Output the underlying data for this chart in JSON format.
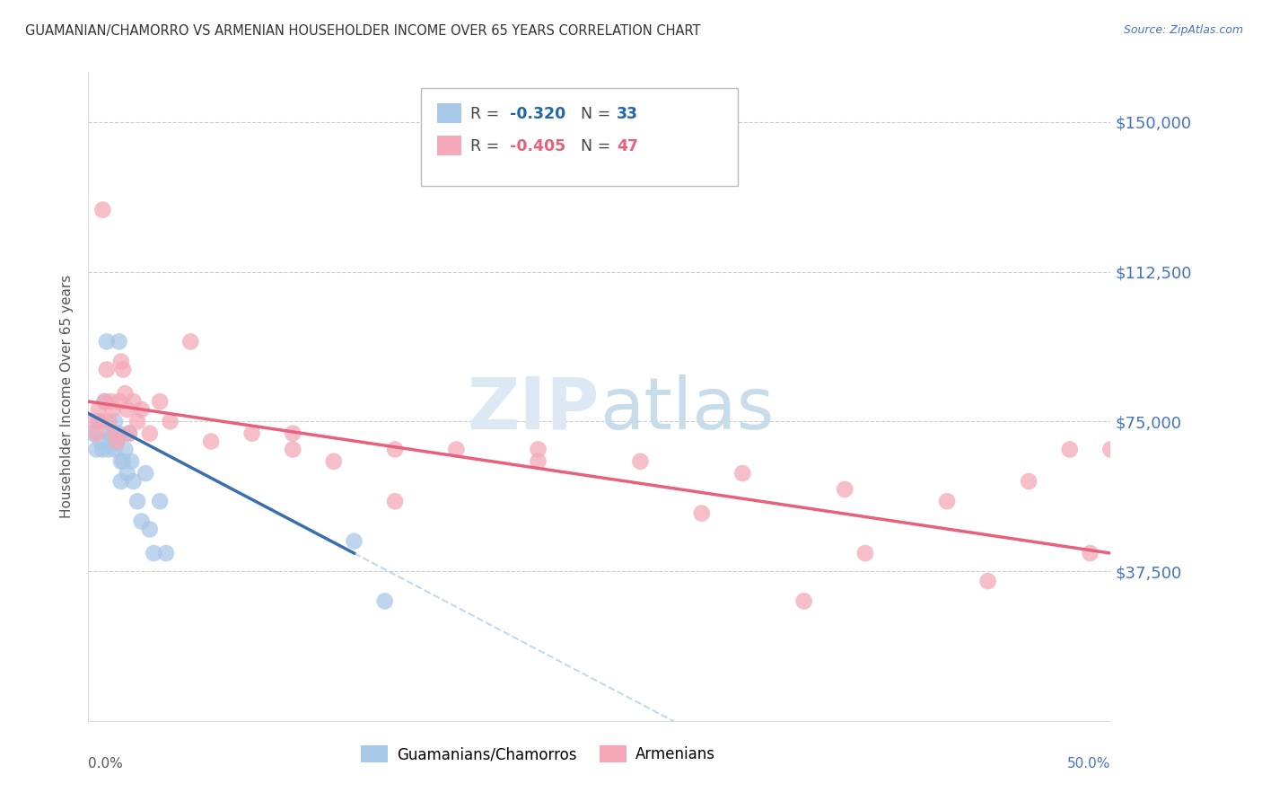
{
  "title": "GUAMANIAN/CHAMORRO VS ARMENIAN HOUSEHOLDER INCOME OVER 65 YEARS CORRELATION CHART",
  "source": "Source: ZipAtlas.com",
  "ylabel": "Householder Income Over 65 years",
  "ytick_labels": [
    "$37,500",
    "$75,000",
    "$112,500",
    "$150,000"
  ],
  "ytick_values": [
    37500,
    75000,
    112500,
    150000
  ],
  "ylim": [
    0,
    162500
  ],
  "xlim": [
    0.0,
    0.5
  ],
  "blue_color": "#a8c8e8",
  "pink_color": "#f4a8b8",
  "blue_line_color": "#3a6fad",
  "pink_line_color": "#e8607a",
  "blue_r": "-0.320",
  "blue_n": "33",
  "pink_r": "-0.405",
  "pink_n": "47",
  "guam_x": [
    0.002,
    0.004,
    0.005,
    0.006,
    0.007,
    0.008,
    0.009,
    0.01,
    0.01,
    0.011,
    0.012,
    0.013,
    0.013,
    0.014,
    0.015,
    0.015,
    0.016,
    0.016,
    0.017,
    0.018,
    0.019,
    0.02,
    0.021,
    0.022,
    0.024,
    0.026,
    0.028,
    0.03,
    0.032,
    0.035,
    0.038,
    0.13,
    0.145
  ],
  "guam_y": [
    72000,
    68000,
    75000,
    70000,
    68000,
    80000,
    95000,
    72000,
    68000,
    70000,
    72000,
    75000,
    68000,
    70000,
    95000,
    72000,
    65000,
    60000,
    65000,
    68000,
    62000,
    72000,
    65000,
    60000,
    55000,
    50000,
    62000,
    48000,
    42000,
    55000,
    42000,
    45000,
    30000
  ],
  "arm_x": [
    0.003,
    0.004,
    0.005,
    0.006,
    0.007,
    0.008,
    0.009,
    0.01,
    0.011,
    0.012,
    0.013,
    0.014,
    0.015,
    0.016,
    0.017,
    0.018,
    0.019,
    0.02,
    0.022,
    0.024,
    0.026,
    0.03,
    0.035,
    0.04,
    0.05,
    0.06,
    0.08,
    0.1,
    0.12,
    0.15,
    0.18,
    0.22,
    0.27,
    0.32,
    0.37,
    0.42,
    0.46,
    0.49,
    0.1,
    0.15,
    0.22,
    0.3,
    0.38,
    0.44,
    0.48,
    0.5,
    0.35
  ],
  "arm_y": [
    75000,
    72000,
    78000,
    75000,
    128000,
    80000,
    88000,
    75000,
    80000,
    78000,
    72000,
    70000,
    80000,
    90000,
    88000,
    82000,
    78000,
    72000,
    80000,
    75000,
    78000,
    72000,
    80000,
    75000,
    95000,
    70000,
    72000,
    68000,
    65000,
    55000,
    68000,
    65000,
    65000,
    62000,
    58000,
    55000,
    60000,
    42000,
    72000,
    68000,
    68000,
    52000,
    42000,
    35000,
    68000,
    68000,
    30000
  ]
}
